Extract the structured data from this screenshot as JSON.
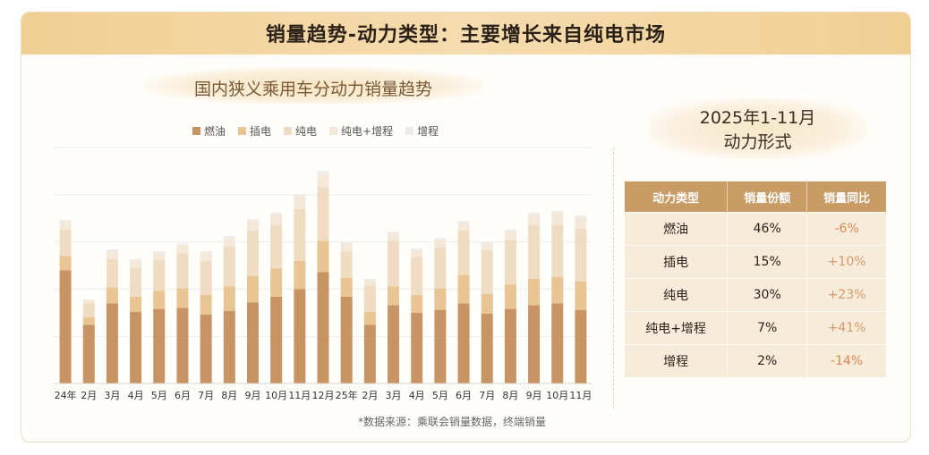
{
  "banner_title": "销量趋势-动力类型：主要增长来自纯电市场",
  "chart_title": "国内狭义乘用车分动力销量趋势",
  "source_note": "*数据来源：乘联会销量数据，终端销量",
  "colors": {
    "banner": "#f0cf94",
    "fuel": "#c99463",
    "phev": "#e8c593",
    "bev": "#efdcc2",
    "bev_erev": "#f4e8d8",
    "erev": "#f0ebe6",
    "table_header": "#c99c66",
    "table_cell": "#f7ecda",
    "negative": "#d9884f"
  },
  "chart_data": {
    "type": "bar",
    "stacked": true,
    "title": "国内狭义乘用车分动力销量趋势",
    "legend_position": "top",
    "grid": true,
    "categories": [
      "24年",
      "2月",
      "3月",
      "4月",
      "5月",
      "6月",
      "7月",
      "8月",
      "9月",
      "10月",
      "11月",
      "12月",
      "25年",
      "2月",
      "3月",
      "4月",
      "5月",
      "6月",
      "7月",
      "8月",
      "9月",
      "10月",
      "11月"
    ],
    "series": [
      {
        "name": "燃油",
        "values": [
          120,
          62,
          85,
          76,
          79,
          80,
          73,
          77,
          86,
          92,
          100,
          118,
          92,
          62,
          83,
          75,
          78,
          85,
          74,
          79,
          83,
          85,
          78
        ]
      },
      {
        "name": "插电",
        "values": [
          15,
          8,
          17,
          16,
          19,
          21,
          21,
          26,
          28,
          30,
          30,
          33,
          20,
          14,
          20,
          19,
          23,
          30,
          21,
          26,
          28,
          28,
          30
        ]
      },
      {
        "name": "纯电",
        "values": [
          28,
          15,
          30,
          30,
          33,
          37,
          36,
          42,
          48,
          46,
          55,
          57,
          28,
          28,
          48,
          40,
          43,
          47,
          46,
          47,
          57,
          55,
          56
        ]
      },
      {
        "name": "纯电+增程",
        "values": [
          8,
          3,
          8,
          8,
          7,
          8,
          8,
          9,
          10,
          10,
          12,
          13,
          8,
          6,
          8,
          7,
          8,
          8,
          7,
          9,
          10,
          12,
          11
        ]
      },
      {
        "name": "增程",
        "values": [
          2,
          1,
          2,
          2,
          2,
          2,
          2,
          2,
          2,
          3,
          3,
          4,
          2,
          1,
          2,
          2,
          2,
          2,
          2,
          2,
          3,
          3,
          3
        ]
      }
    ],
    "ylim": [
      0,
      250
    ],
    "xlabel": "",
    "ylabel": ""
  },
  "share_panel": {
    "period_line1": "2025年1-11月",
    "period_line2": "动力形式",
    "headers": [
      "动力类型",
      "销量份额",
      "销量同比"
    ],
    "rows": [
      {
        "type": "燃油",
        "share": "46%",
        "yoy": "-6%",
        "sign": "neg"
      },
      {
        "type": "插电",
        "share": "15%",
        "yoy": "+10%",
        "sign": "pos"
      },
      {
        "type": "纯电",
        "share": "30%",
        "yoy": "+23%",
        "sign": "pos"
      },
      {
        "type": "纯电+增程",
        "share": "7%",
        "yoy": "+41%",
        "sign": "pos"
      },
      {
        "type": "增程",
        "share": "2%",
        "yoy": "-14%",
        "sign": "neg"
      }
    ]
  }
}
